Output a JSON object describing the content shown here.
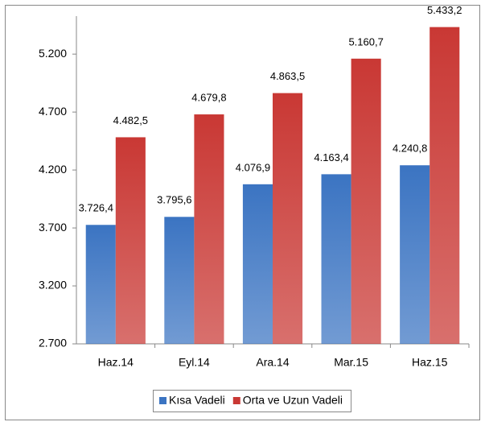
{
  "chart_data": {
    "type": "bar",
    "categories": [
      "Haz.14",
      "Eyl.14",
      "Ara.14",
      "Mar.15",
      "Haz.15"
    ],
    "series": [
      {
        "name": "Kısa Vadeli",
        "color": "#3b74c2",
        "label_color": "#244a7c",
        "values": [
          3726.4,
          3795.6,
          4076.9,
          4163.4,
          4240.8
        ],
        "value_labels": [
          "3.726,4",
          "3.795,6",
          "4.076,9",
          "4.163,4",
          "4.240,8"
        ]
      },
      {
        "name": "Orta ve Uzun Vadeli",
        "color": "#c93834",
        "label_color": "#c0504d",
        "values": [
          4482.5,
          4679.8,
          4863.5,
          5160.7,
          5433.2
        ],
        "value_labels": [
          "4.482,5",
          "4.679,8",
          "4.863,5",
          "5.160,7",
          "5.433,2"
        ]
      }
    ],
    "ylim": [
      2700,
      5500
    ],
    "yticks": [
      {
        "value": 2700,
        "label": "2.700"
      },
      {
        "value": 3200,
        "label": "3.200"
      },
      {
        "value": 3700,
        "label": "3.700"
      },
      {
        "value": 4200,
        "label": "4.200"
      },
      {
        "value": 4700,
        "label": "4.700"
      },
      {
        "value": 5200,
        "label": "5.200"
      }
    ],
    "legend": "bottom"
  }
}
